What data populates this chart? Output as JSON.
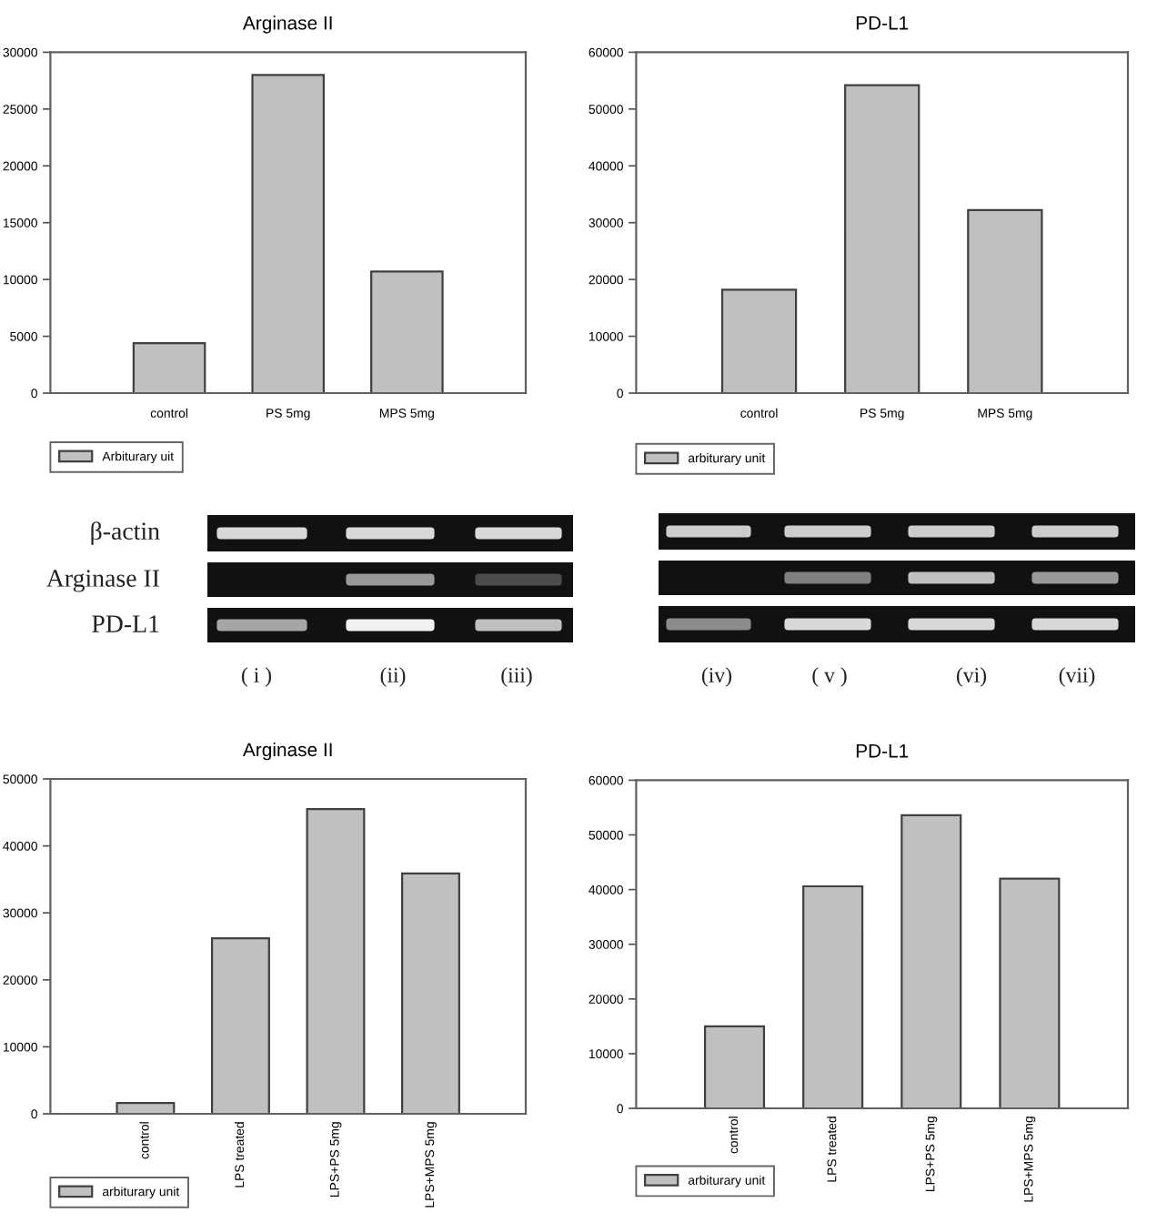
{
  "chart_data": [
    {
      "type": "bar",
      "title": "Arginase II",
      "categories": [
        "control",
        "PS 5mg",
        "MPS 5mg"
      ],
      "series": [
        {
          "name": "Arbiturary uit",
          "color": "#c0c0c0",
          "values": [
            4400,
            28000,
            10700
          ]
        }
      ],
      "ylim": [
        0,
        30000
      ],
      "yticks": [
        0,
        5000,
        10000,
        15000,
        20000,
        25000,
        30000
      ],
      "legend": "bottom left"
    },
    {
      "type": "bar",
      "title": "PD-L1",
      "categories": [
        "control",
        "PS 5mg",
        "MPS 5mg"
      ],
      "series": [
        {
          "name": "arbiturary unit",
          "color": "#c0c0c0",
          "values": [
            18200,
            54200,
            32200
          ]
        }
      ],
      "ylim": [
        0,
        60000
      ],
      "yticks": [
        0,
        10000,
        20000,
        30000,
        40000,
        50000,
        60000
      ],
      "legend": "bottom left"
    },
    {
      "type": "other",
      "annotations": [
        "β-actin",
        "Arginase II",
        "PD-L1",
        "( i )",
        "(ii)",
        "(iii)",
        "(iv)",
        "( v )",
        "(vi)",
        "(vii)"
      ]
    },
    {
      "type": "bar",
      "title": "Arginase II",
      "categories": [
        "control",
        "LPS treated",
        "LPS+PS 5mg",
        "LPS+MPS 5mg"
      ],
      "series": [
        {
          "name": "arbiturary unit",
          "color": "#c0c0c0",
          "values": [
            1600,
            26200,
            45500,
            35900
          ]
        }
      ],
      "ylim": [
        0,
        50000
      ],
      "yticks": [
        0,
        10000,
        20000,
        30000,
        40000,
        50000
      ],
      "legend": "bottom left"
    },
    {
      "type": "bar",
      "title": "PD-L1",
      "categories": [
        "control",
        "LPS treated",
        "LPS+PS 5mg",
        "LPS+MPS 5mg"
      ],
      "series": [
        {
          "name": "arbiturary unit",
          "color": "#c0c0c0",
          "values": [
            15000,
            40600,
            53600,
            42000
          ]
        }
      ],
      "ylim": [
        0,
        60000
      ],
      "yticks": [
        0,
        10000,
        20000,
        30000,
        40000,
        50000,
        60000
      ],
      "legend": "bottom left"
    }
  ]
}
